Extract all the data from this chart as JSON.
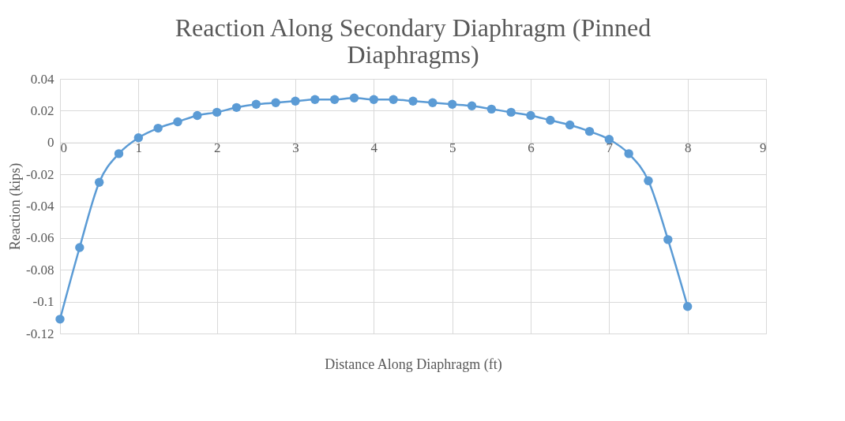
{
  "chart_data": {
    "type": "line",
    "title": [
      "Reaction Along Secondary Diaphragm (Pinned",
      "Diaphragms)"
    ],
    "xlabel": "Distance Along Diaphragm (ft)",
    "ylabel": "Reaction (kips)",
    "x": [
      0,
      0.25,
      0.5,
      0.75,
      1,
      1.25,
      1.5,
      1.75,
      2,
      2.25,
      2.5,
      2.75,
      3,
      3.25,
      3.5,
      3.75,
      4,
      4.25,
      4.5,
      4.75,
      5,
      5.25,
      5.5,
      5.75,
      6,
      6.25,
      6.5,
      6.75,
      7,
      7.25,
      7.5,
      7.75,
      8
    ],
    "series": [
      {
        "color": "#5b9bd5",
        "values": [
          -0.111,
          -0.066,
          -0.025,
          -0.007,
          0.003,
          0.009,
          0.013,
          0.017,
          0.019,
          0.022,
          0.024,
          0.025,
          0.026,
          0.027,
          0.027,
          0.028,
          0.027,
          0.027,
          0.026,
          0.025,
          0.024,
          0.023,
          0.021,
          0.019,
          0.017,
          0.014,
          0.011,
          0.007,
          0.002,
          -0.007,
          -0.024,
          -0.061,
          -0.103
        ]
      }
    ],
    "xlim": [
      0,
      9
    ],
    "xticks": [
      0,
      1,
      2,
      3,
      4,
      5,
      6,
      7,
      8,
      9
    ],
    "ylim": [
      -0.12,
      0.04
    ],
    "yticks": [
      -0.12,
      -0.1,
      -0.08,
      -0.06,
      -0.04,
      -0.02,
      0,
      0.02,
      0.04
    ],
    "grid": true,
    "marker": "circle",
    "line_style": "solid"
  }
}
